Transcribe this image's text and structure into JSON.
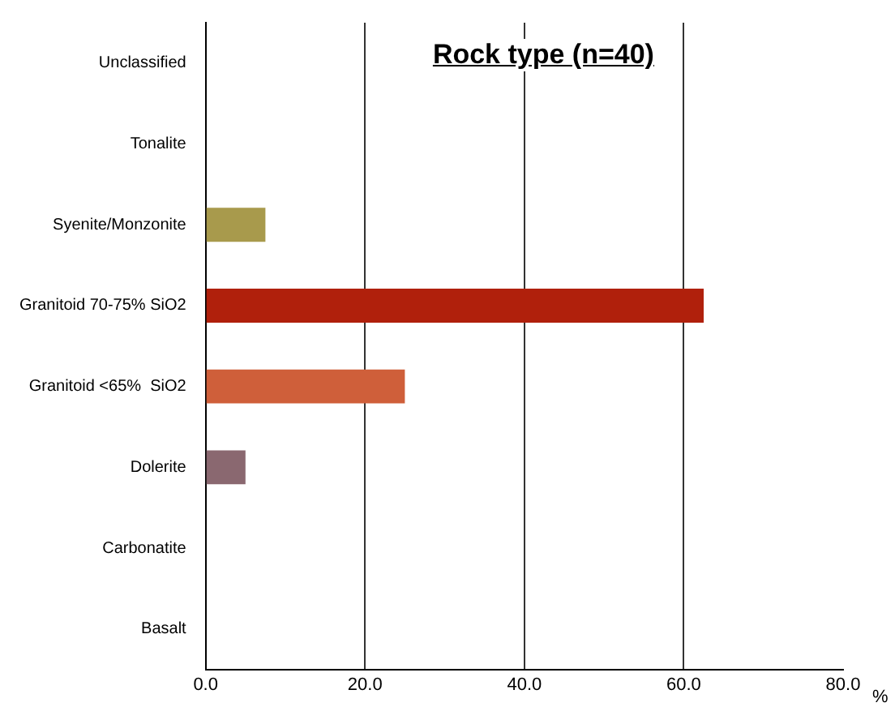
{
  "chart_data": {
    "type": "bar",
    "orientation": "horizontal",
    "title": "Rock type (n=40)",
    "xlabel": "%",
    "categories": [
      "Unclassified",
      "Tonalite",
      "Syenite/Monzonite",
      "Granitoid 70-75% SiO2",
      "Granitoid <65%  SiO2",
      "Dolerite",
      "Carbonatite",
      "Basalt"
    ],
    "values": [
      0,
      0,
      7.5,
      62.5,
      25,
      5,
      0,
      0
    ],
    "colors": [
      null,
      null,
      "#a89a4c",
      "#b0200c",
      "#cf5f3a",
      "#8a6870",
      null,
      null
    ],
    "xlim": [
      0,
      80
    ],
    "xticks": [
      {
        "value": 0,
        "label": "0.0"
      },
      {
        "value": 20,
        "label": "20.0"
      },
      {
        "value": 40,
        "label": "40.0"
      },
      {
        "value": 60,
        "label": "60.0"
      },
      {
        "value": 80,
        "label": "80.0"
      }
    ],
    "grid": "x",
    "legend": false
  }
}
